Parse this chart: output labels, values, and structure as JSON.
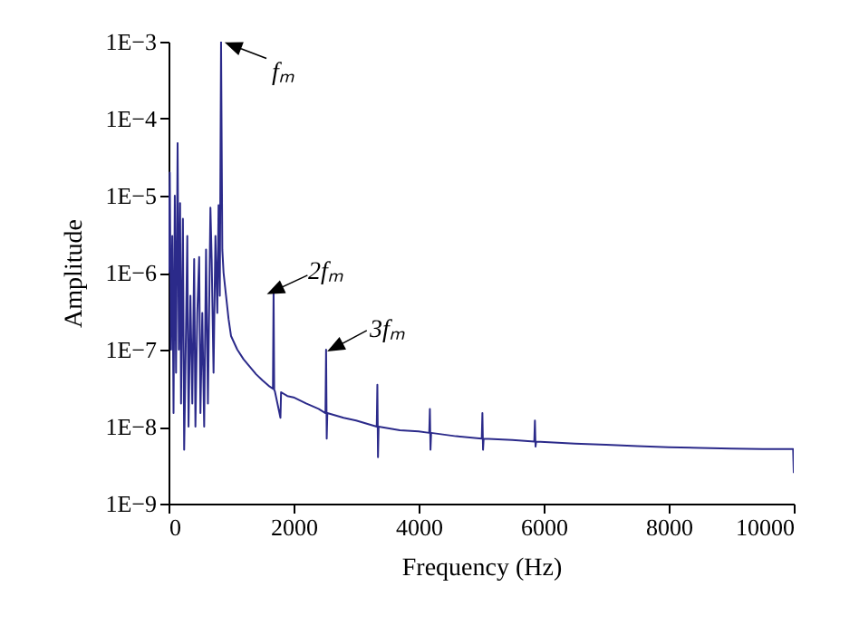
{
  "chart_data": {
    "type": "line",
    "xlabel": "Frequency (Hz)",
    "ylabel": "Amplitude",
    "color": "#2b2a8a",
    "log": "y",
    "xlim": [
      0,
      10000
    ],
    "xticks": [
      0,
      2000,
      4000,
      6000,
      8000,
      10000
    ],
    "ylim": [
      1e-09,
      0.001
    ],
    "yticks": [
      {
        "value": 1e-09,
        "label": "1E−9"
      },
      {
        "value": 1e-08,
        "label": "1E−8"
      },
      {
        "value": 1e-07,
        "label": "1E−7"
      },
      {
        "value": 1e-06,
        "label": "1E−6"
      },
      {
        "value": 1e-05,
        "label": "1E−5"
      },
      {
        "value": 0.0001,
        "label": "1E−4"
      },
      {
        "value": 0.001,
        "label": "1E−3"
      }
    ],
    "x": [
      0,
      20,
      40,
      60,
      80,
      100,
      120,
      145,
      165,
      185,
      200,
      230,
      250,
      280,
      300,
      320,
      350,
      380,
      410,
      430,
      460,
      490,
      510,
      540,
      570,
      600,
      630,
      670,
      690,
      720,
      750,
      780,
      800,
      820,
      840,
      860,
      880,
      920,
      960,
      1000,
      1100,
      1200,
      1300,
      1400,
      1500,
      1600,
      1670,
      1680,
      1690,
      1700,
      1790,
      1800,
      1900,
      2000,
      2200,
      2400,
      2510,
      2520,
      2530,
      2540,
      2800,
      3000,
      3330,
      3340,
      3350,
      3360,
      3700,
      4000,
      4170,
      4180,
      4190,
      4200,
      4600,
      5010,
      5020,
      5030,
      5040,
      5500,
      5850,
      5860,
      5870,
      5880,
      6500,
      7000,
      7500,
      8000,
      8500,
      9000,
      9500,
      9990,
      10000
    ],
    "values": [
      1e-06,
      2e-05,
      1e-07,
      3e-06,
      1.5e-08,
      1e-05,
      5e-08,
      4.8e-05,
      1e-07,
      8e-06,
      2e-08,
      5e-06,
      5e-09,
      2e-07,
      3e-06,
      1e-08,
      5e-07,
      2e-08,
      1.5e-06,
      1e-08,
      3e-07,
      1.6e-06,
      1.5e-08,
      3e-07,
      1e-08,
      2e-06,
      2e-08,
      7e-06,
      1.5e-06,
      5e-08,
      3e-06,
      3e-07,
      7.5e-06,
      5e-07,
      0.001,
      2e-06,
      1e-06,
      5e-07,
      2.5e-07,
      1.5e-07,
      1e-07,
      7.5e-08,
      6e-08,
      4.8e-08,
      4e-08,
      3.4e-08,
      3.1e-08,
      6e-07,
      3e-08,
      2.9e-08,
      1.3e-08,
      2.8e-08,
      2.5e-08,
      2.4e-08,
      2e-08,
      1.7e-08,
      1.5e-08,
      1e-07,
      7e-09,
      1.5e-08,
      1.3e-08,
      1.2e-08,
      1e-08,
      3.5e-08,
      4e-09,
      1e-08,
      9e-09,
      8.7e-09,
      8.3e-09,
      1.7e-08,
      5e-09,
      8.3e-09,
      7.5e-09,
      7e-09,
      1.5e-08,
      5e-09,
      7e-09,
      6.7e-09,
      6.4e-09,
      1.2e-08,
      5.5e-09,
      6.4e-09,
      6e-09,
      5.8e-09,
      5.6e-09,
      5.4e-09,
      5.3e-09,
      5.2e-09,
      5.1e-09,
      5.1e-09,
      2.5e-09
    ],
    "annotations": [
      {
        "text": "fₘ",
        "x": 840,
        "y": 0.001
      },
      {
        "text": "2fₘ",
        "x": 1680,
        "y": 6e-07
      },
      {
        "text": "3fₘ",
        "x": 2520,
        "y": 1e-07
      }
    ]
  }
}
